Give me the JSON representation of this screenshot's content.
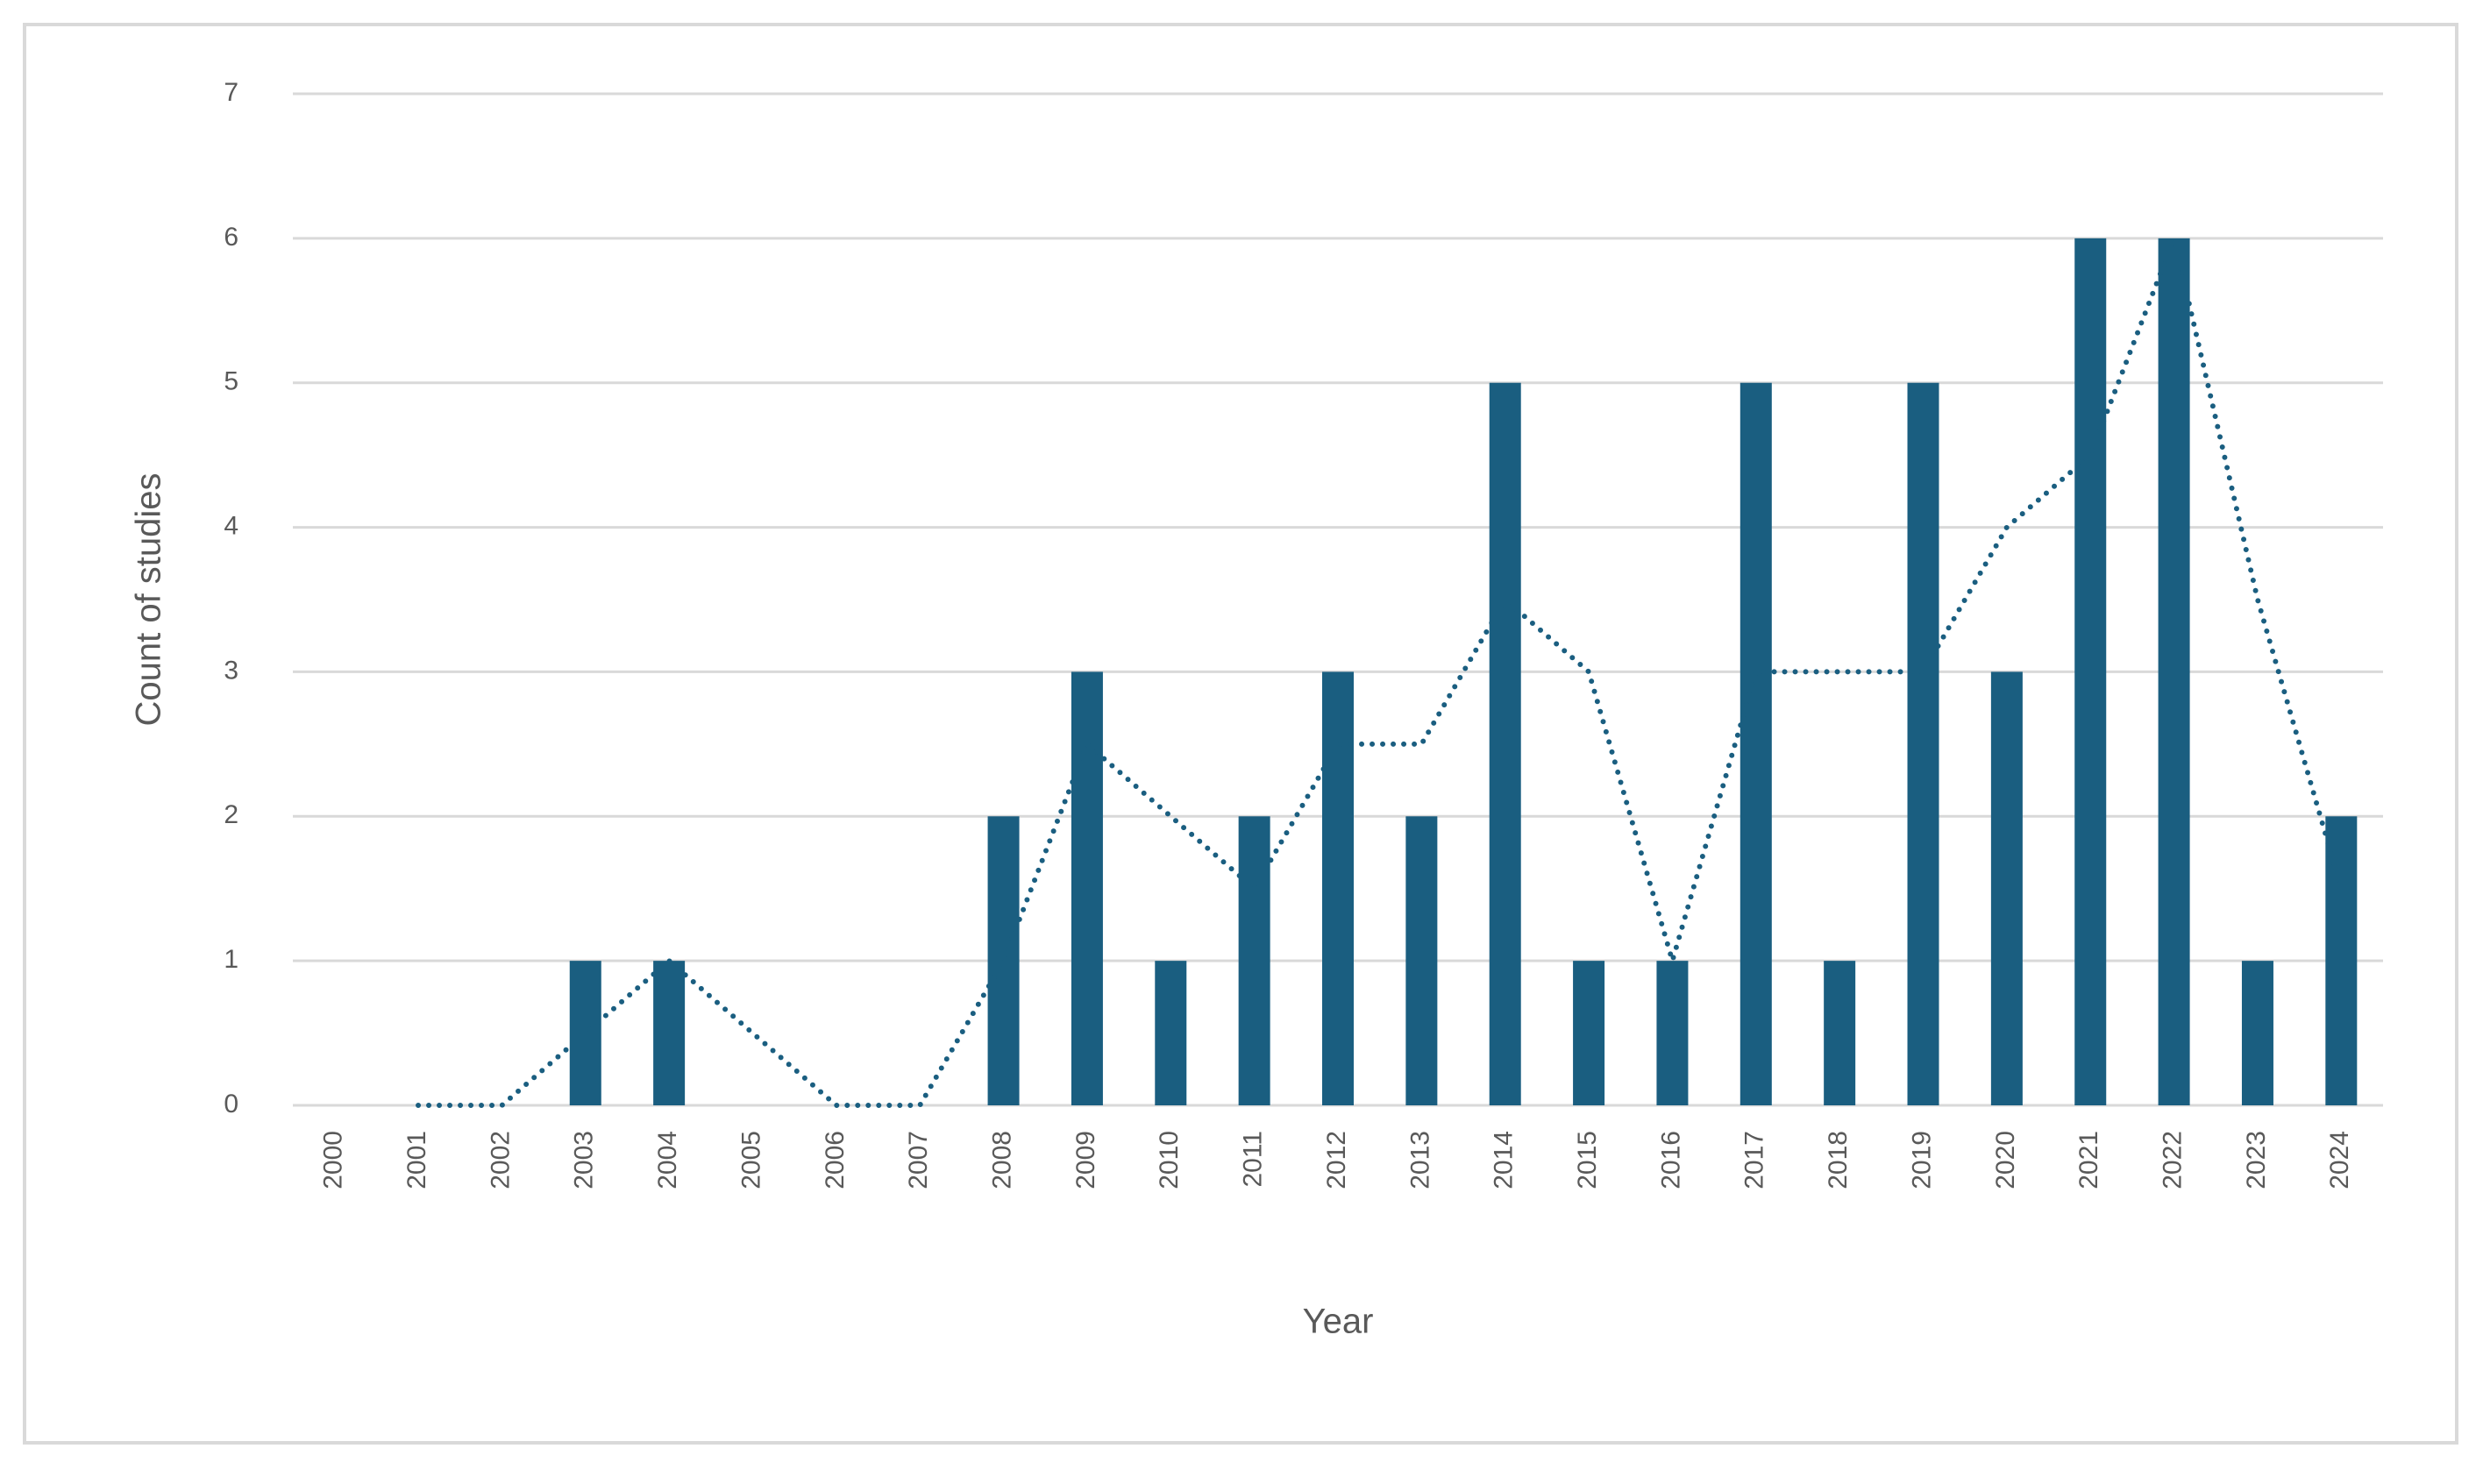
{
  "chart_data": {
    "type": "bar",
    "x_label": "Year",
    "y_label": "Count of studies",
    "categories": [
      "2000",
      "2001",
      "2002",
      "2003",
      "2004",
      "2005",
      "2006",
      "2007",
      "2008",
      "2009",
      "2010",
      "2011",
      "2012",
      "2013",
      "2014",
      "2015",
      "2016",
      "2017",
      "2018",
      "2019",
      "2020",
      "2021",
      "2022",
      "2023",
      "2024"
    ],
    "series": [
      {
        "type": "bar",
        "color": "#1a5e80",
        "values": [
          0,
          0,
          0,
          1,
          1,
          0,
          0,
          0,
          2,
          3,
          1,
          2,
          3,
          2,
          5,
          1,
          1,
          5,
          1,
          5,
          3,
          6,
          6,
          1,
          2
        ]
      },
      {
        "type": "line",
        "style": "dotted",
        "color": "#1a5e80",
        "values": [
          null,
          0,
          0,
          0.5,
          1,
          0.5,
          0,
          0,
          1,
          2.5,
          2,
          1.5,
          2.5,
          2.5,
          3.5,
          3,
          1,
          3,
          3,
          3,
          4,
          4.5,
          6,
          3.5,
          1.5
        ]
      }
    ],
    "ylim": [
      0,
      7
    ],
    "yticks": [
      0,
      1,
      2,
      3,
      4,
      5,
      6,
      7
    ],
    "grid": true
  }
}
